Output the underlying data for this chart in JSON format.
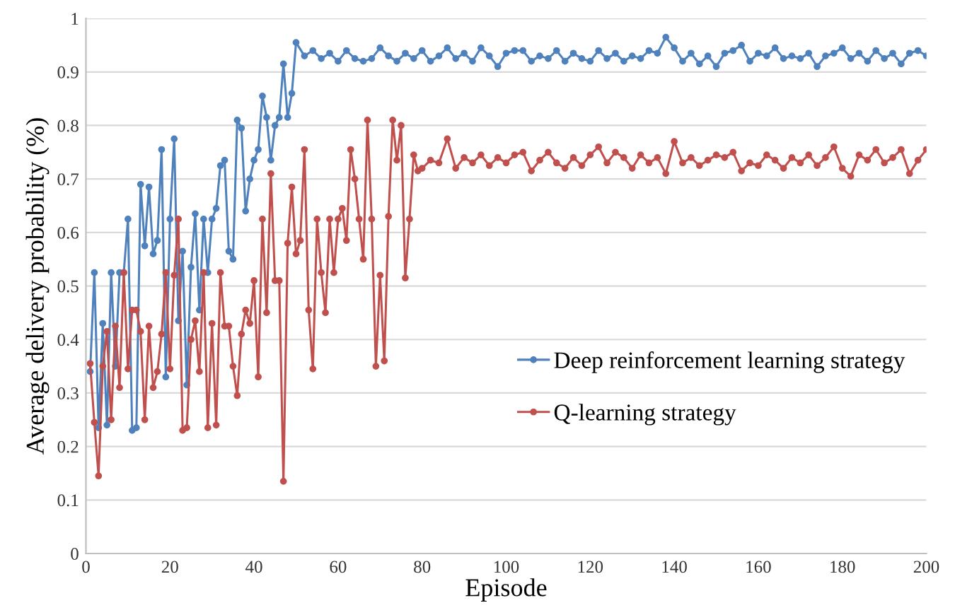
{
  "chart_data": {
    "type": "line",
    "xlabel": "Episode",
    "ylabel": "Average delivery probability (%)",
    "xlim": [
      0,
      200
    ],
    "xticks": [
      0,
      20,
      40,
      60,
      80,
      100,
      120,
      140,
      160,
      180,
      200
    ],
    "ylim": [
      0,
      1
    ],
    "yticks": [
      0,
      0.1,
      0.2,
      0.3,
      0.4,
      0.5,
      0.6,
      0.7,
      0.8,
      0.9,
      1
    ],
    "grid": "y",
    "legend": "lower right",
    "marker": "circle",
    "line_style": "solid",
    "series": [
      {
        "name": "Deep reinforcement learning strategy",
        "color": "#4f81bd",
        "x": [
          1,
          2,
          3,
          4,
          5,
          6,
          7,
          8,
          9,
          10,
          11,
          12,
          13,
          14,
          15,
          16,
          17,
          18,
          19,
          20,
          21,
          22,
          23,
          24,
          25,
          26,
          27,
          28,
          29,
          30,
          31,
          32,
          33,
          34,
          35,
          36,
          37,
          38,
          39,
          40,
          41,
          42,
          43,
          44,
          45,
          46,
          47,
          48,
          49,
          50,
          52,
          54,
          56,
          58,
          60,
          62,
          64,
          66,
          68,
          70,
          72,
          74,
          76,
          78,
          80,
          82,
          84,
          86,
          88,
          90,
          92,
          94,
          96,
          98,
          100,
          102,
          104,
          106,
          108,
          110,
          112,
          114,
          116,
          118,
          120,
          122,
          124,
          126,
          128,
          130,
          132,
          134,
          136,
          138,
          140,
          142,
          144,
          146,
          148,
          150,
          152,
          154,
          156,
          158,
          160,
          162,
          164,
          166,
          168,
          170,
          172,
          174,
          176,
          178,
          180,
          182,
          184,
          186,
          188,
          190,
          192,
          194,
          196,
          198,
          200
        ],
        "values": [
          0.34,
          0.525,
          0.235,
          0.43,
          0.24,
          0.525,
          0.35,
          0.525,
          0.525,
          0.625,
          0.23,
          0.235,
          0.69,
          0.575,
          0.685,
          0.56,
          0.585,
          0.755,
          0.33,
          0.625,
          0.775,
          0.435,
          0.565,
          0.315,
          0.535,
          0.635,
          0.455,
          0.625,
          0.525,
          0.625,
          0.645,
          0.725,
          0.735,
          0.565,
          0.55,
          0.81,
          0.795,
          0.64,
          0.7,
          0.735,
          0.755,
          0.855,
          0.815,
          0.735,
          0.8,
          0.815,
          0.915,
          0.815,
          0.86,
          0.955,
          0.93,
          0.94,
          0.925,
          0.935,
          0.92,
          0.94,
          0.925,
          0.92,
          0.925,
          0.945,
          0.93,
          0.92,
          0.935,
          0.925,
          0.94,
          0.92,
          0.93,
          0.945,
          0.925,
          0.935,
          0.92,
          0.945,
          0.93,
          0.91,
          0.935,
          0.94,
          0.94,
          0.92,
          0.93,
          0.925,
          0.94,
          0.92,
          0.935,
          0.925,
          0.92,
          0.94,
          0.925,
          0.935,
          0.92,
          0.93,
          0.925,
          0.94,
          0.935,
          0.965,
          0.945,
          0.92,
          0.935,
          0.915,
          0.93,
          0.91,
          0.935,
          0.94,
          0.95,
          0.92,
          0.935,
          0.93,
          0.945,
          0.925,
          0.93,
          0.925,
          0.935,
          0.91,
          0.93,
          0.935,
          0.945,
          0.925,
          0.935,
          0.92,
          0.94,
          0.925,
          0.935,
          0.915,
          0.935,
          0.94,
          0.93
        ]
      },
      {
        "name": "Q-learning strategy",
        "color": "#c0504d",
        "x": [
          1,
          2,
          3,
          4,
          5,
          6,
          7,
          8,
          9,
          10,
          11,
          12,
          13,
          14,
          15,
          16,
          17,
          18,
          19,
          20,
          21,
          22,
          23,
          24,
          25,
          26,
          27,
          28,
          29,
          30,
          31,
          32,
          33,
          34,
          35,
          36,
          37,
          38,
          39,
          40,
          41,
          42,
          43,
          44,
          45,
          46,
          47,
          48,
          49,
          50,
          51,
          52,
          53,
          54,
          55,
          56,
          57,
          58,
          59,
          60,
          61,
          62,
          63,
          64,
          65,
          66,
          67,
          68,
          69,
          70,
          71,
          72,
          73,
          74,
          75,
          76,
          77,
          78,
          79,
          80,
          82,
          84,
          86,
          88,
          90,
          92,
          94,
          96,
          98,
          100,
          102,
          104,
          106,
          108,
          110,
          112,
          114,
          116,
          118,
          120,
          122,
          124,
          126,
          128,
          130,
          132,
          134,
          136,
          138,
          140,
          142,
          144,
          146,
          148,
          150,
          152,
          154,
          156,
          158,
          160,
          162,
          164,
          166,
          168,
          170,
          172,
          174,
          176,
          178,
          180,
          182,
          184,
          186,
          188,
          190,
          192,
          194,
          196,
          198,
          200
        ],
        "values": [
          0.355,
          0.245,
          0.145,
          0.35,
          0.415,
          0.25,
          0.425,
          0.31,
          0.525,
          0.345,
          0.455,
          0.455,
          0.415,
          0.25,
          0.425,
          0.31,
          0.34,
          0.41,
          0.525,
          0.345,
          0.52,
          0.625,
          0.23,
          0.235,
          0.4,
          0.435,
          0.34,
          0.525,
          0.235,
          0.43,
          0.24,
          0.525,
          0.425,
          0.425,
          0.35,
          0.295,
          0.41,
          0.455,
          0.43,
          0.51,
          0.33,
          0.625,
          0.45,
          0.71,
          0.51,
          0.51,
          0.135,
          0.58,
          0.685,
          0.56,
          0.585,
          0.755,
          0.455,
          0.345,
          0.625,
          0.525,
          0.45,
          0.625,
          0.525,
          0.625,
          0.645,
          0.585,
          0.755,
          0.7,
          0.625,
          0.55,
          0.81,
          0.625,
          0.35,
          0.52,
          0.36,
          0.63,
          0.81,
          0.735,
          0.8,
          0.515,
          0.625,
          0.745,
          0.715,
          0.72,
          0.735,
          0.73,
          0.775,
          0.72,
          0.74,
          0.73,
          0.745,
          0.725,
          0.74,
          0.73,
          0.745,
          0.75,
          0.715,
          0.735,
          0.75,
          0.73,
          0.72,
          0.74,
          0.725,
          0.745,
          0.76,
          0.73,
          0.75,
          0.74,
          0.72,
          0.745,
          0.73,
          0.74,
          0.71,
          0.77,
          0.73,
          0.74,
          0.725,
          0.735,
          0.745,
          0.74,
          0.75,
          0.715,
          0.73,
          0.725,
          0.745,
          0.735,
          0.72,
          0.74,
          0.73,
          0.745,
          0.725,
          0.74,
          0.76,
          0.72,
          0.705,
          0.745,
          0.735,
          0.755,
          0.73,
          0.74,
          0.755,
          0.71,
          0.735,
          0.755
        ]
      }
    ]
  }
}
